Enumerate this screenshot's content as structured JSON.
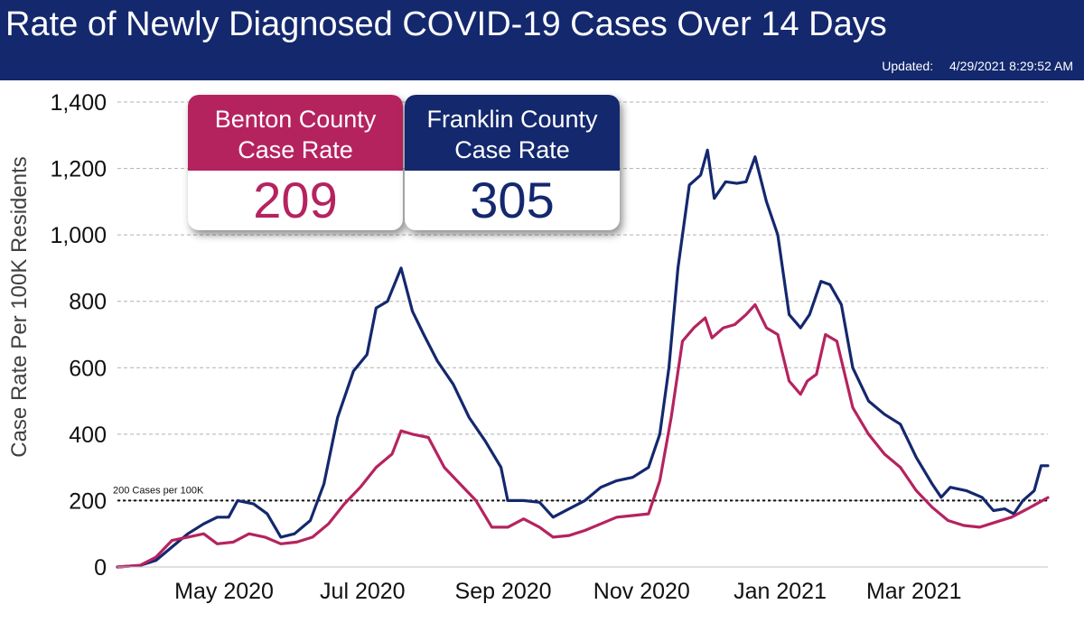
{
  "header": {
    "title": "Rate of Newly Diagnosed COVID-19 Cases Over 14 Days",
    "updated_label": "Updated:",
    "updated_value": "4/29/2021 8:29:52 AM"
  },
  "cards": {
    "benton": {
      "title_line1": "Benton County",
      "title_line2": "Case Rate",
      "value": "209",
      "color": "#b5235f"
    },
    "franklin": {
      "title_line1": "Franklin County",
      "title_line2": "Case Rate",
      "value": "305",
      "color": "#14286e"
    }
  },
  "chart_data": {
    "type": "line",
    "title": "Rate of Newly Diagnosed COVID-19 Cases Over 14 Days",
    "ylabel": "Case Rate Per 100K Residents",
    "xlabel": "",
    "ylim": [
      0,
      1400
    ],
    "xlim": [
      "2020-03-15",
      "2021-04-29"
    ],
    "yticks": [
      0,
      200,
      400,
      600,
      800,
      1000,
      1200,
      1400
    ],
    "ytick_labels": [
      "0",
      "200",
      "400",
      "600",
      "800",
      "1,000",
      "1,200",
      "1,400"
    ],
    "xticks": [
      {
        "date": "2020-05-01",
        "label": "May 2020"
      },
      {
        "date": "2020-07-01",
        "label": "Jul 2020"
      },
      {
        "date": "2020-09-01",
        "label": "Sep 2020"
      },
      {
        "date": "2020-11-01",
        "label": "Nov 2020"
      },
      {
        "date": "2021-01-01",
        "label": "Jan 2021"
      },
      {
        "date": "2021-03-01",
        "label": "Mar 2021"
      }
    ],
    "grid": "horizontal-dashed",
    "threshold": {
      "value": 200,
      "label": "200 Cases per 100K"
    },
    "series": [
      {
        "name": "Franklin County",
        "color": "#14286e",
        "points": [
          [
            "2020-03-15",
            0
          ],
          [
            "2020-03-25",
            5
          ],
          [
            "2020-04-01",
            20
          ],
          [
            "2020-04-08",
            60
          ],
          [
            "2020-04-15",
            100
          ],
          [
            "2020-04-22",
            130
          ],
          [
            "2020-04-28",
            150
          ],
          [
            "2020-05-03",
            150
          ],
          [
            "2020-05-07",
            200
          ],
          [
            "2020-05-14",
            190
          ],
          [
            "2020-05-20",
            160
          ],
          [
            "2020-05-26",
            90
          ],
          [
            "2020-06-01",
            100
          ],
          [
            "2020-06-08",
            140
          ],
          [
            "2020-06-14",
            250
          ],
          [
            "2020-06-20",
            450
          ],
          [
            "2020-06-27",
            590
          ],
          [
            "2020-07-03",
            640
          ],
          [
            "2020-07-07",
            780
          ],
          [
            "2020-07-12",
            800
          ],
          [
            "2020-07-18",
            900
          ],
          [
            "2020-07-23",
            770
          ],
          [
            "2020-07-28",
            700
          ],
          [
            "2020-08-03",
            620
          ],
          [
            "2020-08-10",
            550
          ],
          [
            "2020-08-17",
            450
          ],
          [
            "2020-08-24",
            380
          ],
          [
            "2020-08-31",
            300
          ],
          [
            "2020-09-03",
            200
          ],
          [
            "2020-09-10",
            200
          ],
          [
            "2020-09-17",
            195
          ],
          [
            "2020-09-23",
            150
          ],
          [
            "2020-09-30",
            175
          ],
          [
            "2020-10-07",
            200
          ],
          [
            "2020-10-14",
            240
          ],
          [
            "2020-10-21",
            260
          ],
          [
            "2020-10-28",
            270
          ],
          [
            "2020-11-04",
            300
          ],
          [
            "2020-11-09",
            400
          ],
          [
            "2020-11-13",
            600
          ],
          [
            "2020-11-17",
            900
          ],
          [
            "2020-11-22",
            1150
          ],
          [
            "2020-11-27",
            1180
          ],
          [
            "2020-11-30",
            1255
          ],
          [
            "2020-12-03",
            1110
          ],
          [
            "2020-12-08",
            1160
          ],
          [
            "2020-12-13",
            1155
          ],
          [
            "2020-12-17",
            1160
          ],
          [
            "2020-12-21",
            1235
          ],
          [
            "2020-12-26",
            1100
          ],
          [
            "2020-12-31",
            1000
          ],
          [
            "2021-01-05",
            760
          ],
          [
            "2021-01-10",
            720
          ],
          [
            "2021-01-14",
            760
          ],
          [
            "2021-01-19",
            860
          ],
          [
            "2021-01-23",
            850
          ],
          [
            "2021-01-28",
            790
          ],
          [
            "2021-02-02",
            600
          ],
          [
            "2021-02-09",
            500
          ],
          [
            "2021-02-16",
            460
          ],
          [
            "2021-02-23",
            430
          ],
          [
            "2021-03-02",
            330
          ],
          [
            "2021-03-09",
            250
          ],
          [
            "2021-03-13",
            210
          ],
          [
            "2021-03-17",
            240
          ],
          [
            "2021-03-24",
            230
          ],
          [
            "2021-03-31",
            210
          ],
          [
            "2021-04-05",
            170
          ],
          [
            "2021-04-10",
            175
          ],
          [
            "2021-04-14",
            160
          ],
          [
            "2021-04-18",
            200
          ],
          [
            "2021-04-23",
            230
          ],
          [
            "2021-04-26",
            305
          ],
          [
            "2021-04-29",
            305
          ]
        ]
      },
      {
        "name": "Benton County",
        "color": "#b5235f",
        "points": [
          [
            "2020-03-15",
            0
          ],
          [
            "2020-03-25",
            5
          ],
          [
            "2020-04-01",
            30
          ],
          [
            "2020-04-08",
            80
          ],
          [
            "2020-04-15",
            90
          ],
          [
            "2020-04-22",
            100
          ],
          [
            "2020-04-28",
            70
          ],
          [
            "2020-05-05",
            75
          ],
          [
            "2020-05-12",
            100
          ],
          [
            "2020-05-19",
            90
          ],
          [
            "2020-05-26",
            70
          ],
          [
            "2020-06-02",
            75
          ],
          [
            "2020-06-09",
            90
          ],
          [
            "2020-06-16",
            130
          ],
          [
            "2020-06-23",
            190
          ],
          [
            "2020-06-30",
            240
          ],
          [
            "2020-07-07",
            300
          ],
          [
            "2020-07-14",
            340
          ],
          [
            "2020-07-18",
            410
          ],
          [
            "2020-07-23",
            400
          ],
          [
            "2020-07-30",
            390
          ],
          [
            "2020-08-06",
            300
          ],
          [
            "2020-08-13",
            250
          ],
          [
            "2020-08-20",
            200
          ],
          [
            "2020-08-27",
            120
          ],
          [
            "2020-09-03",
            120
          ],
          [
            "2020-09-10",
            145
          ],
          [
            "2020-09-17",
            120
          ],
          [
            "2020-09-23",
            90
          ],
          [
            "2020-09-30",
            95
          ],
          [
            "2020-10-07",
            110
          ],
          [
            "2020-10-14",
            130
          ],
          [
            "2020-10-21",
            150
          ],
          [
            "2020-10-28",
            155
          ],
          [
            "2020-11-04",
            160
          ],
          [
            "2020-11-09",
            260
          ],
          [
            "2020-11-14",
            450
          ],
          [
            "2020-11-19",
            680
          ],
          [
            "2020-11-24",
            720
          ],
          [
            "2020-11-29",
            750
          ],
          [
            "2020-12-02",
            690
          ],
          [
            "2020-12-07",
            720
          ],
          [
            "2020-12-12",
            730
          ],
          [
            "2020-12-17",
            760
          ],
          [
            "2020-12-21",
            790
          ],
          [
            "2020-12-26",
            720
          ],
          [
            "2020-12-31",
            700
          ],
          [
            "2021-01-05",
            560
          ],
          [
            "2021-01-10",
            520
          ],
          [
            "2021-01-13",
            560
          ],
          [
            "2021-01-17",
            580
          ],
          [
            "2021-01-21",
            700
          ],
          [
            "2021-01-26",
            680
          ],
          [
            "2021-02-02",
            480
          ],
          [
            "2021-02-09",
            400
          ],
          [
            "2021-02-16",
            340
          ],
          [
            "2021-02-23",
            300
          ],
          [
            "2021-03-02",
            230
          ],
          [
            "2021-03-09",
            180
          ],
          [
            "2021-03-16",
            140
          ],
          [
            "2021-03-23",
            125
          ],
          [
            "2021-03-30",
            120
          ],
          [
            "2021-04-06",
            135
          ],
          [
            "2021-04-13",
            150
          ],
          [
            "2021-04-20",
            175
          ],
          [
            "2021-04-29",
            209
          ]
        ]
      }
    ]
  }
}
